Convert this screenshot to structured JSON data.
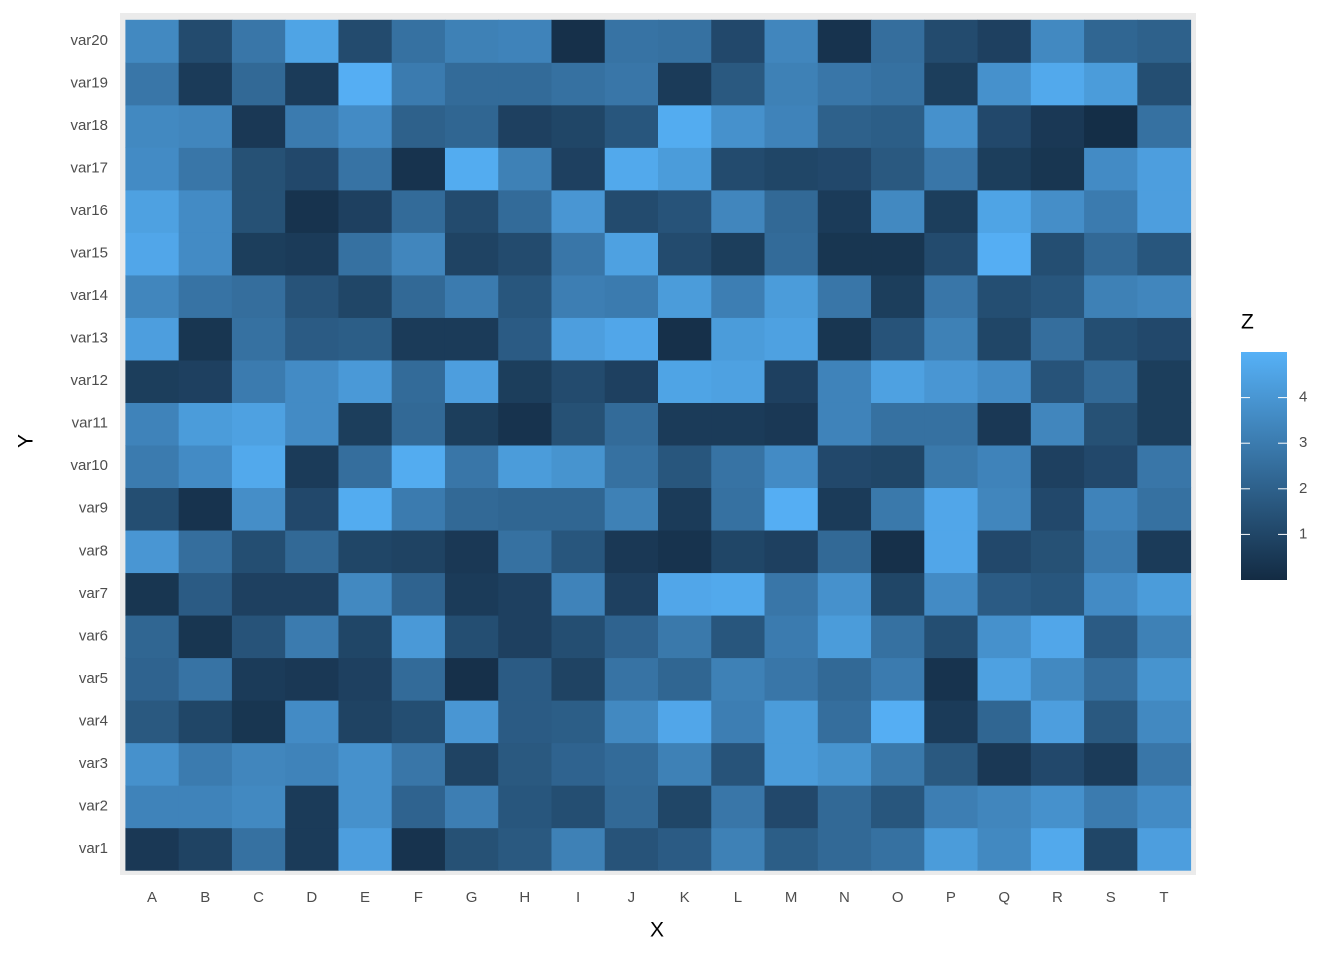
{
  "chart_data": {
    "type": "heatmap",
    "x_label": "X",
    "y_label": "Y",
    "legend_title": "Z",
    "categories": [
      "A",
      "B",
      "C",
      "D",
      "E",
      "F",
      "G",
      "H",
      "I",
      "J",
      "K",
      "L",
      "M",
      "N",
      "O",
      "P",
      "Q",
      "R",
      "S",
      "T"
    ],
    "y_categories": [
      "var1",
      "var2",
      "var3",
      "var4",
      "var5",
      "var6",
      "var7",
      "var8",
      "var9",
      "var10",
      "var11",
      "var12",
      "var13",
      "var14",
      "var15",
      "var16",
      "var17",
      "var18",
      "var19",
      "var20"
    ],
    "values": [
      [
        0.5,
        0.9,
        2.6,
        0.6,
        4.3,
        0.3,
        1.4,
        1.7,
        3.2,
        1.5,
        1.8,
        3.2,
        1.9,
        2.3,
        2.6,
        4.2,
        3.5,
        4.7,
        1.0,
        4.3
      ],
      [
        3.3,
        3.3,
        3.5,
        0.6,
        3.8,
        2.1,
        3.1,
        1.6,
        1.3,
        2.3,
        1.0,
        2.8,
        1.1,
        2.3,
        1.6,
        3.1,
        3.4,
        3.8,
        3.0,
        3.6
      ],
      [
        3.8,
        3.0,
        3.4,
        3.3,
        3.8,
        2.8,
        0.9,
        1.7,
        2.1,
        2.4,
        3.2,
        1.5,
        4.2,
        3.9,
        2.9,
        1.7,
        0.5,
        1.1,
        0.6,
        2.8
      ],
      [
        1.7,
        1.0,
        0.4,
        3.6,
        0.9,
        1.3,
        4.0,
        1.8,
        1.9,
        3.5,
        4.6,
        3.1,
        4.2,
        2.5,
        4.9,
        0.6,
        2.2,
        4.3,
        1.7,
        3.5
      ],
      [
        2.1,
        2.7,
        0.6,
        0.5,
        0.8,
        2.4,
        0.2,
        1.8,
        0.9,
        2.7,
        2.2,
        3.2,
        2.8,
        2.3,
        3.0,
        0.3,
        4.4,
        3.5,
        2.5,
        3.9
      ],
      [
        2.2,
        0.4,
        1.5,
        3.0,
        1.0,
        4.1,
        1.3,
        0.8,
        1.3,
        2.1,
        2.9,
        1.6,
        3.0,
        4.2,
        2.6,
        1.3,
        3.8,
        4.6,
        1.8,
        3.2
      ],
      [
        0.4,
        1.8,
        0.8,
        0.8,
        3.5,
        2.1,
        0.6,
        0.8,
        3.3,
        0.8,
        4.6,
        4.7,
        2.8,
        3.8,
        1.0,
        3.6,
        1.8,
        1.6,
        3.6,
        4.2
      ],
      [
        4.0,
        2.5,
        1.3,
        2.3,
        1.0,
        0.9,
        0.5,
        2.6,
        1.6,
        0.5,
        0.3,
        1.0,
        0.8,
        2.3,
        0.2,
        4.6,
        1.1,
        1.4,
        3.0,
        0.6
      ],
      [
        1.3,
        0.3,
        3.7,
        1.1,
        4.8,
        3.0,
        2.3,
        2.2,
        2.2,
        3.2,
        0.6,
        2.6,
        4.9,
        0.6,
        2.9,
        4.6,
        3.4,
        1.1,
        3.3,
        2.6
      ],
      [
        3.0,
        3.6,
        4.7,
        0.6,
        2.5,
        4.8,
        2.8,
        4.2,
        3.9,
        2.6,
        1.6,
        2.7,
        3.6,
        1.1,
        1.0,
        2.9,
        3.3,
        0.8,
        1.1,
        2.8
      ],
      [
        3.3,
        4.2,
        4.4,
        3.6,
        0.7,
        2.3,
        0.7,
        0.3,
        1.4,
        2.4,
        0.6,
        0.6,
        0.5,
        3.3,
        2.6,
        2.6,
        0.5,
        3.4,
        1.4,
        0.7
      ],
      [
        0.7,
        0.8,
        3.0,
        3.6,
        4.1,
        2.4,
        4.3,
        0.7,
        1.2,
        0.8,
        4.5,
        4.4,
        0.8,
        3.3,
        4.4,
        4.0,
        3.6,
        1.5,
        2.3,
        0.7
      ],
      [
        4.3,
        0.4,
        2.6,
        1.8,
        1.9,
        0.6,
        0.6,
        1.8,
        4.3,
        4.6,
        0.2,
        4.2,
        4.4,
        0.4,
        1.5,
        3.2,
        1.0,
        2.5,
        1.3,
        1.1
      ],
      [
        3.4,
        2.7,
        2.5,
        1.5,
        1.0,
        2.3,
        3.0,
        1.6,
        3.1,
        3.0,
        4.2,
        3.1,
        4.2,
        2.8,
        0.7,
        2.8,
        1.3,
        1.6,
        3.2,
        3.4
      ],
      [
        4.6,
        3.6,
        0.7,
        0.6,
        2.6,
        3.4,
        0.9,
        1.2,
        2.8,
        4.4,
        1.2,
        0.7,
        2.4,
        0.4,
        0.4,
        1.2,
        4.9,
        1.3,
        2.3,
        1.6
      ],
      [
        4.4,
        3.6,
        1.4,
        0.3,
        0.8,
        2.4,
        1.2,
        2.4,
        4.0,
        1.2,
        1.5,
        3.4,
        2.3,
        0.6,
        3.5,
        0.7,
        4.5,
        3.7,
        3.0,
        4.3
      ],
      [
        3.6,
        2.8,
        1.4,
        1.1,
        2.7,
        0.3,
        4.8,
        3.2,
        0.8,
        4.7,
        4.2,
        1.2,
        1.0,
        1.1,
        1.7,
        2.8,
        0.7,
        0.4,
        3.6,
        4.3
      ],
      [
        3.5,
        3.4,
        0.5,
        3.0,
        3.6,
        2.0,
        2.2,
        0.8,
        1.0,
        1.6,
        4.8,
        3.8,
        3.3,
        2.0,
        1.9,
        3.8,
        1.1,
        0.5,
        0.1,
        2.6
      ],
      [
        2.8,
        0.6,
        2.3,
        0.6,
        4.9,
        3.0,
        2.4,
        2.4,
        2.6,
        2.8,
        0.6,
        1.7,
        3.2,
        2.8,
        2.6,
        0.7,
        3.8,
        4.7,
        4.2,
        1.3
      ],
      [
        3.5,
        1.2,
        2.8,
        4.5,
        1.2,
        2.6,
        3.2,
        3.3,
        0.2,
        2.7,
        2.6,
        1.1,
        3.4,
        0.3,
        2.5,
        1.2,
        0.8,
        3.5,
        2.2,
        2.0
      ]
    ],
    "zlim": [
      0,
      5
    ],
    "zticks": [
      1,
      2,
      3,
      4
    ],
    "low_color": "#132B43",
    "high_color": "#56B1F7"
  }
}
